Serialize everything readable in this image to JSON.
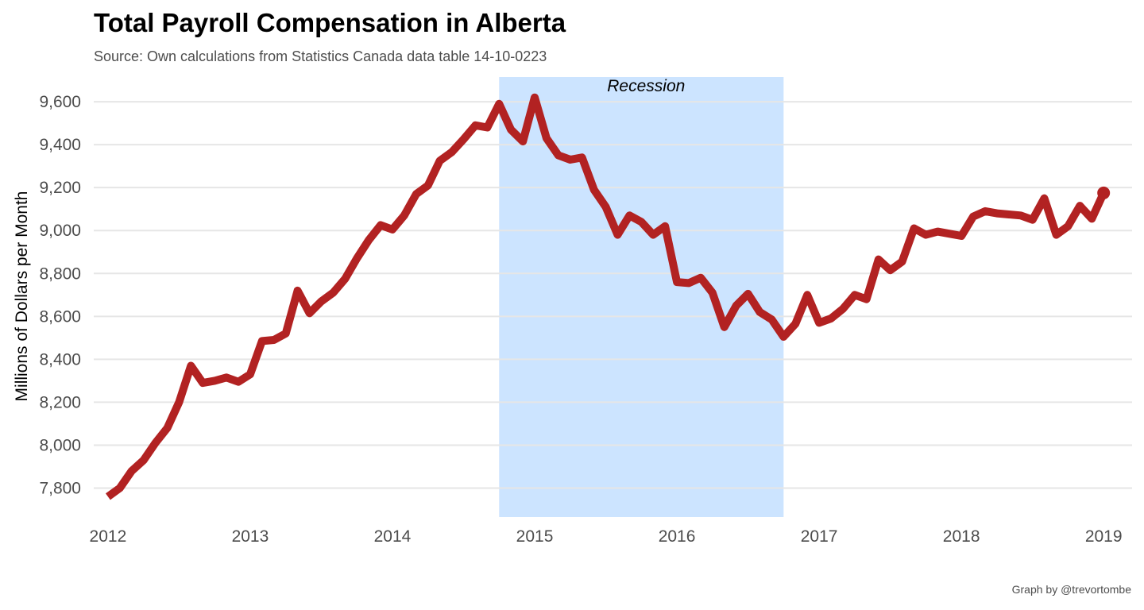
{
  "colors": {
    "line": "#b22222",
    "recession": "#cce4ff",
    "grid": "#e6e6e6"
  },
  "chart_data": {
    "type": "line",
    "title": "Total Payroll Compensation in Alberta",
    "subtitle": "Source: Own calculations from Statistics Canada data table 14-10-0223",
    "caption": "Graph by @trevortombe",
    "ylabel": "Millions of Dollars per Month",
    "xlabel": "",
    "xlim": [
      2011.9,
      2019.2
    ],
    "ylim": [
      7665,
      9715
    ],
    "x_ticks": [
      2012,
      2013,
      2014,
      2015,
      2016,
      2017,
      2018,
      2019
    ],
    "x_tick_labels": [
      "2012",
      "2013",
      "2014",
      "2015",
      "2016",
      "2017",
      "2018",
      "2019"
    ],
    "y_ticks": [
      7800,
      8000,
      8200,
      8400,
      8600,
      8800,
      9000,
      9200,
      9400,
      9600
    ],
    "y_tick_labels": [
      "7,800",
      "8,000",
      "8,200",
      "8,400",
      "8,600",
      "8,800",
      "9,000",
      "9,200",
      "9,400",
      "9,600"
    ],
    "grid": "horizontal",
    "legend": "none",
    "annotations": [
      {
        "type": "shaded-region",
        "label": "Recession",
        "x_start": 2014.75,
        "x_end": 2016.75
      }
    ],
    "series": [
      {
        "x": [
          2012.0,
          2012.083,
          2012.167,
          2012.25,
          2012.333,
          2012.417,
          2012.5,
          2012.583,
          2012.667,
          2012.75,
          2012.833,
          2012.917,
          2013.0,
          2013.083,
          2013.167,
          2013.25,
          2013.333,
          2013.417,
          2013.5,
          2013.583,
          2013.667,
          2013.75,
          2013.833,
          2013.917,
          2014.0,
          2014.083,
          2014.167,
          2014.25,
          2014.333,
          2014.417,
          2014.5,
          2014.583,
          2014.667,
          2014.75,
          2014.833,
          2014.917,
          2015.0,
          2015.083,
          2015.167,
          2015.25,
          2015.333,
          2015.417,
          2015.5,
          2015.583,
          2015.667,
          2015.75,
          2015.833,
          2015.917,
          2016.0,
          2016.083,
          2016.167,
          2016.25,
          2016.333,
          2016.417,
          2016.5,
          2016.583,
          2016.667,
          2016.75,
          2016.833,
          2016.917,
          2017.0,
          2017.083,
          2017.167,
          2017.25,
          2017.333,
          2017.417,
          2017.5,
          2017.583,
          2017.667,
          2017.75,
          2017.833,
          2017.917,
          2018.0,
          2018.083,
          2018.167,
          2018.25,
          2018.333,
          2018.417,
          2018.5,
          2018.583,
          2018.667,
          2018.75,
          2018.833,
          2018.917,
          2019.0
        ],
        "values": [
          7760,
          7800,
          7880,
          7930,
          8010,
          8080,
          8200,
          8370,
          8290,
          8300,
          8315,
          8295,
          8330,
          8485,
          8490,
          8520,
          8720,
          8615,
          8670,
          8710,
          8775,
          8870,
          8955,
          9025,
          9005,
          9070,
          9170,
          9210,
          9325,
          9365,
          9425,
          9490,
          9480,
          9590,
          9470,
          9415,
          9620,
          9430,
          9350,
          9330,
          9340,
          9190,
          9110,
          8980,
          9070,
          9040,
          8980,
          9020,
          8760,
          8755,
          8780,
          8710,
          8550,
          8650,
          8705,
          8620,
          8585,
          8505,
          8565,
          8700,
          8570,
          8590,
          8635,
          8700,
          8680,
          8865,
          8815,
          8855,
          9010,
          8980,
          8995,
          8985,
          8975,
          9065,
          9090,
          9080,
          9075,
          9070,
          9050,
          9150,
          8980,
          9020,
          9115,
          9055,
          9175
        ]
      }
    ]
  }
}
